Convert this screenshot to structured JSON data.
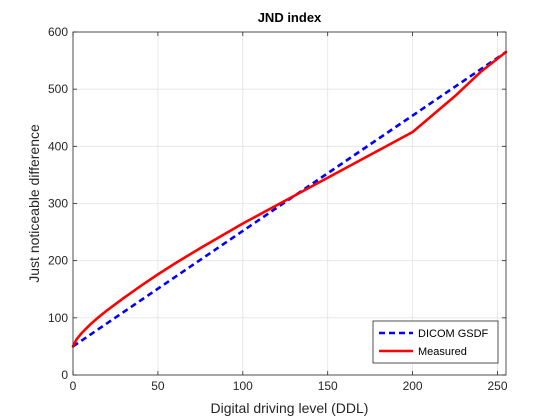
{
  "chart_data": {
    "type": "line",
    "title": "JND index",
    "xlabel": "Digital driving level (DDL)",
    "ylabel": "Just noticeable difference",
    "xlim": [
      0,
      255
    ],
    "ylim": [
      0,
      600
    ],
    "xticks": [
      0,
      50,
      100,
      150,
      200,
      250
    ],
    "yticks": [
      0,
      100,
      200,
      300,
      400,
      500,
      600
    ],
    "grid": true,
    "legend_position": "bottom-right",
    "series": [
      {
        "name": "DICOM GSDF",
        "color": "#0000ff",
        "style": "dashed",
        "x": [
          0,
          255
        ],
        "y": [
          50,
          565
        ]
      },
      {
        "name": "Measured",
        "color": "#ff0000",
        "style": "solid",
        "x": [
          0,
          2,
          5,
          10,
          15,
          20,
          30,
          40,
          50,
          60,
          75,
          100,
          125,
          150,
          175,
          200,
          225,
          240,
          255
        ],
        "y": [
          50,
          62,
          73,
          88,
          101,
          113,
          135,
          156,
          176,
          195,
          222,
          265,
          305,
          345,
          385,
          425,
          488,
          530,
          565
        ]
      }
    ]
  }
}
